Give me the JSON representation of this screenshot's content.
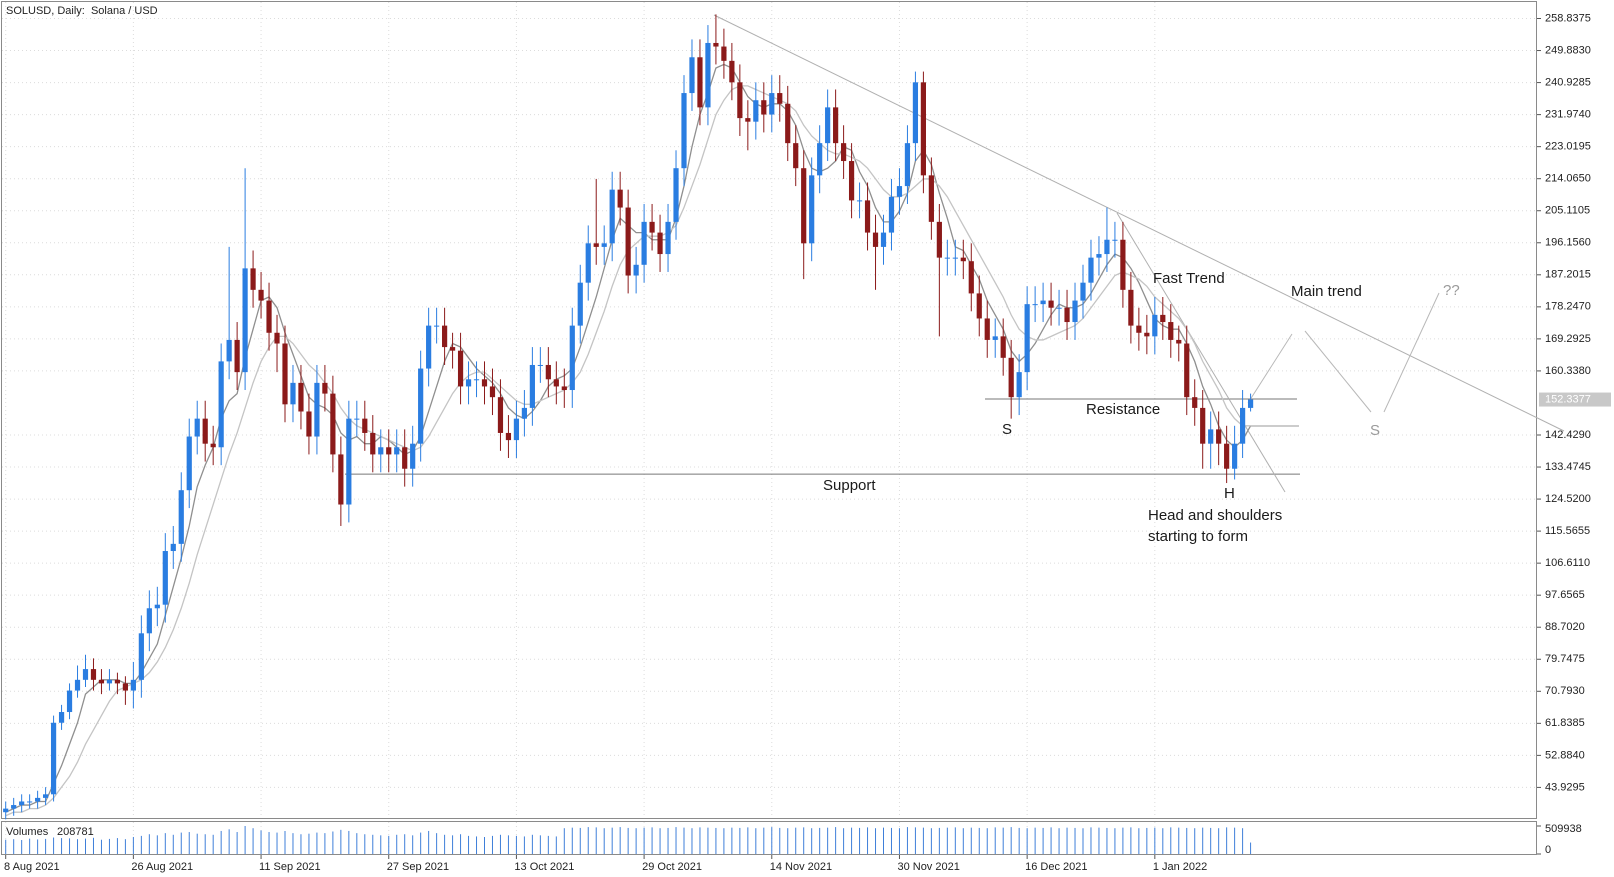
{
  "chart_data": {
    "type": "candlestick",
    "title": "SOLUSD, Daily:  Solana / USD",
    "categories": [
      "8 Aug 2021",
      null,
      null,
      null,
      null,
      null,
      null,
      null,
      null,
      null,
      null,
      null,
      null,
      null,
      null,
      null,
      "26 Aug 2021",
      null,
      null,
      null,
      null,
      null,
      null,
      null,
      null,
      null,
      null,
      null,
      null,
      null,
      null,
      null,
      "11 Sep 2021",
      null,
      null,
      null,
      null,
      null,
      null,
      null,
      null,
      null,
      null,
      null,
      null,
      null,
      null,
      null,
      "27 Sep 2021",
      null,
      null,
      null,
      null,
      null,
      null,
      null,
      null,
      null,
      null,
      null,
      null,
      null,
      null,
      null,
      "13 Oct 2021",
      null,
      null,
      null,
      null,
      null,
      null,
      null,
      null,
      null,
      null,
      null,
      null,
      null,
      null,
      null,
      "29 Oct 2021",
      null,
      null,
      null,
      null,
      null,
      null,
      null,
      null,
      null,
      null,
      null,
      null,
      null,
      null,
      null,
      "14 Nov 2021",
      null,
      null,
      null,
      null,
      null,
      null,
      null,
      null,
      null,
      null,
      null,
      null,
      null,
      null,
      null,
      "30 Nov 2021",
      null,
      null,
      null,
      null,
      null,
      null,
      null,
      null,
      null,
      null,
      null,
      null,
      null,
      null,
      null,
      "16 Dec 2021",
      null,
      null,
      null,
      null,
      null,
      null,
      null,
      null,
      null,
      null,
      null,
      null,
      null,
      null,
      null,
      "1 Jan 2022",
      null,
      null,
      null,
      null,
      null,
      null,
      null,
      null,
      null,
      null,
      null,
      null
    ],
    "open": [
      37,
      38,
      39,
      40,
      40,
      41,
      42,
      62,
      65,
      71,
      74,
      77,
      74,
      73,
      74,
      73,
      71,
      74,
      87,
      94,
      95,
      110,
      112,
      127,
      142,
      147,
      140,
      139,
      163,
      169,
      160,
      189,
      183,
      180,
      171,
      168,
      151,
      157,
      149,
      142,
      157,
      154,
      137,
      123,
      147,
      147,
      143,
      137,
      139,
      137,
      139,
      133,
      140,
      161,
      173,
      173,
      167,
      166,
      156,
      158,
      158,
      156,
      153,
      143,
      141,
      147,
      150,
      162,
      162,
      158,
      156,
      155,
      173,
      185,
      196,
      195,
      196,
      211,
      206,
      187,
      190,
      202,
      199,
      193,
      202,
      217,
      238,
      248,
      234,
      252,
      251,
      247,
      241,
      231,
      230,
      236,
      232,
      238,
      235,
      224,
      217,
      196,
      215,
      224,
      234,
      224,
      219,
      208,
      208,
      199,
      195,
      199,
      209,
      212,
      224,
      241,
      215,
      202,
      192,
      192,
      192,
      191,
      182,
      175,
      169,
      170,
      164,
      153,
      160,
      179,
      179,
      180,
      178,
      178,
      174,
      180,
      185,
      192,
      193,
      197,
      197,
      183,
      173,
      171,
      170,
      176,
      174,
      169,
      168,
      153,
      150,
      140,
      144,
      140,
      133,
      140,
      150
    ],
    "high": [
      40,
      41,
      42,
      42,
      43,
      44,
      64,
      67,
      73,
      78,
      81,
      80,
      77,
      77,
      76,
      75,
      79,
      92,
      99,
      100,
      115,
      117,
      132,
      147,
      152,
      152,
      145,
      168,
      195,
      174,
      217,
      194,
      188,
      185,
      176,
      173,
      162,
      162,
      154,
      162,
      162,
      159,
      142,
      152,
      152,
      152,
      148,
      144,
      144,
      144,
      144,
      145,
      166,
      178,
      178,
      178,
      171,
      171,
      163,
      163,
      163,
      161,
      158,
      148,
      152,
      155,
      167,
      167,
      167,
      163,
      161,
      178,
      190,
      201,
      214,
      201,
      216,
      216,
      211,
      195,
      207,
      207,
      204,
      207,
      222,
      243,
      253,
      253,
      257,
      260,
      256,
      252,
      246,
      236,
      241,
      241,
      243,
      243,
      240,
      229,
      222,
      220,
      229,
      239,
      239,
      229,
      224,
      213,
      213,
      204,
      204,
      214,
      217,
      229,
      244,
      244,
      220,
      207,
      197,
      197,
      197,
      196,
      187,
      180,
      175,
      175,
      169,
      165,
      184,
      184,
      185,
      185,
      183,
      183,
      185,
      190,
      197,
      198,
      206,
      202,
      202,
      188,
      178,
      176,
      181,
      181,
      179,
      173,
      173,
      158,
      155,
      149,
      149,
      145,
      145,
      155,
      154
    ],
    "low": [
      35,
      36,
      37,
      38,
      38,
      39,
      40,
      60,
      63,
      69,
      72,
      71,
      70,
      71,
      70,
      67,
      66,
      69,
      82,
      89,
      90,
      105,
      107,
      122,
      137,
      135,
      134,
      134,
      158,
      155,
      155,
      178,
      175,
      166,
      160,
      146,
      146,
      144,
      137,
      137,
      149,
      132,
      117,
      118,
      142,
      138,
      132,
      132,
      132,
      132,
      128,
      128,
      135,
      156,
      168,
      162,
      161,
      151,
      151,
      153,
      151,
      148,
      138,
      136,
      136,
      142,
      145,
      157,
      153,
      151,
      150,
      150,
      168,
      180,
      190,
      190,
      191,
      201,
      182,
      182,
      185,
      194,
      188,
      188,
      197,
      212,
      233,
      229,
      229,
      246,
      242,
      236,
      226,
      222,
      225,
      227,
      227,
      230,
      219,
      212,
      186,
      191,
      210,
      219,
      219,
      214,
      203,
      203,
      194,
      183,
      190,
      194,
      204,
      207,
      219,
      210,
      197,
      170,
      187,
      187,
      186,
      177,
      170,
      164,
      164,
      159,
      147,
      148,
      155,
      174,
      174,
      173,
      173,
      169,
      169,
      175,
      180,
      187,
      188,
      192,
      178,
      168,
      166,
      165,
      165,
      169,
      164,
      163,
      148,
      145,
      133,
      133,
      134,
      129,
      130,
      136,
      149
    ],
    "close": [
      38,
      39,
      40,
      40,
      41,
      42,
      62,
      65,
      71,
      74,
      77,
      74,
      73,
      74,
      73,
      71,
      74,
      87,
      94,
      95,
      110,
      112,
      127,
      142,
      147,
      140,
      139,
      163,
      169,
      160,
      189,
      183,
      180,
      171,
      168,
      151,
      157,
      149,
      142,
      157,
      154,
      137,
      123,
      147,
      147,
      143,
      137,
      139,
      137,
      139,
      133,
      140,
      161,
      173,
      173,
      167,
      166,
      156,
      158,
      158,
      156,
      153,
      143,
      141,
      147,
      150,
      162,
      162,
      158,
      156,
      155,
      173,
      185,
      196,
      195,
      196,
      211,
      206,
      187,
      190,
      202,
      199,
      193,
      202,
      217,
      238,
      248,
      234,
      252,
      251,
      247,
      241,
      231,
      230,
      236,
      232,
      238,
      235,
      224,
      217,
      196,
      215,
      224,
      234,
      224,
      219,
      208,
      208,
      199,
      195,
      199,
      209,
      212,
      224,
      241,
      215,
      202,
      192,
      192,
      192,
      191,
      182,
      175,
      169,
      170,
      164,
      153,
      160,
      179,
      179,
      180,
      178,
      178,
      174,
      180,
      185,
      192,
      193,
      197,
      197,
      183,
      173,
      171,
      170,
      176,
      174,
      169,
      168,
      153,
      150,
      140,
      144,
      140,
      133,
      140,
      150,
      152.3377
    ],
    "up_color": "#2a7de1",
    "down_color": "#8b1a1a",
    "series": [
      {
        "color": "#8f8f8f",
        "values": [
          37,
          38,
          39,
          39,
          40,
          40,
          45,
          50,
          56,
          62,
          70,
          72,
          74,
          74,
          74,
          73,
          73,
          76,
          80,
          84,
          92,
          100,
          108,
          117,
          128,
          134,
          139,
          147,
          152,
          154,
          164,
          172,
          180,
          181,
          178,
          171,
          165,
          159,
          153,
          151,
          150,
          148,
          143,
          141,
          142,
          140,
          140,
          142,
          141,
          139,
          137,
          138,
          142,
          149,
          156,
          163,
          168,
          167,
          164,
          161,
          159,
          157,
          154,
          150,
          148,
          147,
          149,
          152,
          156,
          158,
          159,
          161,
          167,
          174,
          181,
          189,
          197,
          203,
          201,
          199,
          199,
          197,
          197,
          197,
          203,
          212,
          223,
          232,
          238,
          245,
          246,
          245,
          241,
          237,
          235,
          234,
          235,
          235,
          233,
          229,
          222,
          217,
          216,
          217,
          219,
          223,
          222,
          216,
          212,
          206,
          202,
          202,
          205,
          210,
          219,
          222,
          218,
          210,
          203,
          195,
          194,
          190,
          186,
          180,
          176,
          172,
          166,
          163,
          165,
          168,
          172,
          176,
          179,
          178,
          178,
          179,
          182,
          186,
          190,
          193,
          192,
          189,
          185,
          180,
          175,
          173,
          172,
          172,
          168,
          163,
          156,
          151,
          145,
          141,
          139,
          141,
          145
        ]
      },
      {
        "color": "#c4c4c4",
        "values": [
          36,
          37,
          37,
          38,
          38,
          39,
          41,
          44,
          47,
          51,
          56,
          60,
          64,
          68,
          71,
          72,
          73,
          74,
          76,
          79,
          83,
          88,
          94,
          101,
          109,
          116,
          123,
          130,
          137,
          143,
          150,
          157,
          163,
          167,
          170,
          170,
          168,
          165,
          162,
          160,
          157,
          154,
          150,
          147,
          145,
          144,
          143,
          142,
          141,
          140,
          139,
          138,
          139,
          142,
          146,
          150,
          154,
          157,
          159,
          160,
          160,
          158,
          156,
          154,
          152,
          151,
          151,
          152,
          153,
          154,
          155,
          157,
          160,
          165,
          171,
          177,
          184,
          190,
          194,
          196,
          198,
          198,
          198,
          199,
          201,
          206,
          212,
          218,
          225,
          232,
          236,
          239,
          240,
          240,
          239,
          238,
          237,
          236,
          235,
          233,
          229,
          226,
          224,
          222,
          221,
          221,
          220,
          219,
          217,
          214,
          211,
          209,
          209,
          210,
          212,
          214,
          214,
          212,
          209,
          205,
          201,
          197,
          193,
          189,
          185,
          181,
          176,
          172,
          170,
          169,
          169,
          170,
          171,
          172,
          173,
          175,
          178,
          181,
          184,
          187,
          188,
          187,
          186,
          184,
          181,
          179,
          177,
          175,
          172,
          168,
          163,
          159,
          155,
          150,
          147,
          145,
          145
        ]
      }
    ],
    "ylim": [
      35.38,
      263.45
    ],
    "yticks": [
      258.8375,
      {
        "value": 249.883,
        "label": "249.8830"
      },
      240.9285,
      {
        "value": 231.974,
        "label": "231.9740"
      },
      223.0195,
      {
        "value": 214.065,
        "label": "214.0650"
      },
      205.1105,
      {
        "value": 196.156,
        "label": "196.1560"
      },
      187.2015,
      {
        "value": 178.247,
        "label": "178.2470"
      },
      169.2925,
      {
        "value": 160.338,
        "label": "160.3380"
      },
      {
        "value": 142.429,
        "label": "142.4290"
      },
      133.4745,
      {
        "value": 124.52,
        "label": "124.5200"
      },
      115.5655,
      {
        "value": 106.611,
        "label": "106.6110"
      },
      97.6565,
      {
        "value": 88.702,
        "label": "88.7020"
      },
      79.7475,
      {
        "value": 70.793,
        "label": "70.7930"
      },
      61.8385,
      {
        "value": 52.884,
        "label": "52.8840"
      },
      43.9295
    ],
    "grid": true,
    "levels": {
      "support": 131.5,
      "resistance": 152.5
    },
    "annotations": [
      "Fast Trend",
      "Main trend",
      "??",
      "S",
      "Resistance",
      "S",
      "H",
      "Support",
      "Head and shoulders",
      "starting to form"
    ],
    "volume": {
      "label": "Volumes",
      "color": "#3f7fd9",
      "ylim": [
        0,
        509938
      ],
      "yticks": [
        509938,
        0
      ],
      "values": [
        260000,
        270000,
        255000,
        280000,
        265000,
        275000,
        300000,
        290000,
        285000,
        270000,
        280000,
        295000,
        260000,
        275000,
        290000,
        270000,
        310000,
        330000,
        360000,
        340000,
        380000,
        350000,
        390000,
        400000,
        370000,
        360000,
        350000,
        420000,
        450000,
        400000,
        509938,
        470000,
        430000,
        400000,
        390000,
        420000,
        380000,
        360000,
        370000,
        390000,
        380000,
        410000,
        440000,
        420000,
        380000,
        360000,
        350000,
        340000,
        330000,
        350000,
        360000,
        340000,
        390000,
        420000,
        380000,
        350000,
        340000,
        360000,
        330000,
        320000,
        310000,
        330000,
        350000,
        340000,
        330000,
        320000,
        350000,
        340000,
        330000,
        320000,
        470000,
        480000,
        475000,
        490000,
        485000,
        470000,
        480000,
        490000,
        475000,
        470000,
        480000,
        485000,
        470000,
        475000,
        490000,
        480000,
        470000,
        485000,
        480000,
        475000,
        470000,
        480000,
        475000,
        485000,
        470000,
        480000,
        490000,
        475000,
        470000,
        480000,
        485000,
        470000,
        475000,
        480000,
        490000,
        470000,
        480000,
        475000,
        485000,
        470000,
        480000,
        475000,
        470000,
        490000,
        485000,
        480000,
        470000,
        475000,
        480000,
        485000,
        470000,
        480000,
        475000,
        470000,
        485000,
        480000,
        490000,
        475000,
        470000,
        480000,
        475000,
        485000,
        470000,
        480000,
        475000,
        470000,
        485000,
        480000,
        475000,
        470000,
        480000,
        485000,
        470000,
        475000,
        480000,
        470000,
        485000,
        480000,
        475000,
        470000,
        480000,
        475000,
        470000,
        485000,
        480000,
        470000,
        208781
      ]
    }
  }
}
